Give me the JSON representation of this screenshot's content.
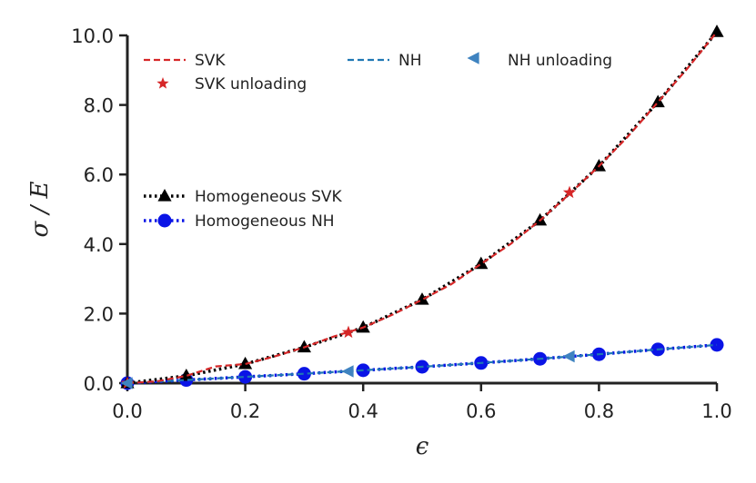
{
  "chart_data": {
    "type": "line",
    "title": "",
    "xlabel": "ϵ",
    "ylabel": "σ / E",
    "xlim": [
      0.0,
      1.0
    ],
    "ylim": [
      0.0,
      10.0
    ],
    "xticks": [
      0.0,
      0.2,
      0.4,
      0.6,
      0.8,
      1.0
    ],
    "xtick_labels": [
      "0.0",
      "0.2",
      "0.4",
      "0.6",
      "0.8",
      "1.0"
    ],
    "yticks": [
      0.0,
      2.0,
      4.0,
      6.0,
      8.0,
      10.0
    ],
    "ytick_labels": [
      "0.0",
      "2.0",
      "4.0",
      "6.0",
      "8.0",
      "10.0"
    ],
    "grid": false,
    "series": [
      {
        "name": "SVK",
        "style": "dashed-line",
        "color": "#d62728",
        "x": [
          0.0,
          0.05,
          0.1,
          0.15,
          0.2,
          0.25,
          0.3,
          0.35,
          0.4,
          0.45,
          0.5,
          0.55,
          0.6,
          0.65,
          0.7,
          0.75,
          0.8,
          0.85,
          0.9,
          0.95,
          1.0
        ],
        "y": [
          0.0,
          0.05,
          0.21,
          0.48,
          0.55,
          0.77,
          1.03,
          1.34,
          1.6,
          1.97,
          2.4,
          2.85,
          3.43,
          4.0,
          4.68,
          5.44,
          6.24,
          7.11,
          8.08,
          9.05,
          10.1
        ]
      },
      {
        "name": "SVK unloading",
        "style": "star-marker",
        "color": "#d62728",
        "x": [
          0.0,
          0.375,
          0.75
        ],
        "y": [
          0.0,
          1.46,
          5.48
        ]
      },
      {
        "name": "NH",
        "style": "dashed-line",
        "color": "#1f77b4",
        "x": [
          0.0,
          0.1,
          0.2,
          0.3,
          0.4,
          0.5,
          0.6,
          0.7,
          0.8,
          0.9,
          1.0
        ],
        "y": [
          0.0,
          0.09,
          0.18,
          0.27,
          0.37,
          0.47,
          0.58,
          0.7,
          0.83,
          0.97,
          1.1
        ]
      },
      {
        "name": "NH unloading",
        "style": "left-triangle-marker",
        "color": "#3f83c0",
        "x": [
          0.0,
          0.375,
          0.75
        ],
        "y": [
          0.0,
          0.34,
          0.77
        ]
      },
      {
        "name": "Homogeneous SVK",
        "style": "dotted-line-triangle-marker",
        "color": "#000000",
        "x": [
          0.0,
          0.1,
          0.2,
          0.3,
          0.4,
          0.5,
          0.6,
          0.7,
          0.8,
          0.9,
          1.0
        ],
        "y": [
          0.0,
          0.21,
          0.55,
          1.03,
          1.6,
          2.4,
          3.43,
          4.68,
          6.24,
          8.08,
          10.1
        ]
      },
      {
        "name": "Homogeneous NH",
        "style": "dotted-line-circle-marker",
        "color": "#0a14e6",
        "x": [
          0.0,
          0.1,
          0.2,
          0.3,
          0.4,
          0.5,
          0.6,
          0.7,
          0.8,
          0.9,
          1.0
        ],
        "y": [
          0.0,
          0.09,
          0.18,
          0.27,
          0.37,
          0.47,
          0.58,
          0.7,
          0.83,
          0.97,
          1.1
        ]
      }
    ],
    "legends": [
      {
        "placement": "top",
        "entries": [
          "SVK",
          "SVK unloading",
          "NH",
          "NH unloading"
        ]
      },
      {
        "placement": "center-left",
        "entries": [
          "Homogeneous SVK",
          "Homogeneous NH"
        ]
      }
    ]
  }
}
